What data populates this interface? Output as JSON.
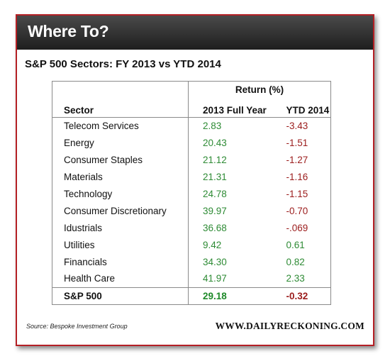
{
  "banner": {
    "title": "Where To?"
  },
  "subtitle": "S&P 500 Sectors: FY 2013 vs YTD 2014",
  "table": {
    "group_header": "Return (%)",
    "col_sector": "Sector",
    "col_fy": "2013 Full Year",
    "col_ytd": "YTD 2014",
    "rows": [
      {
        "sector": "Telecom Services",
        "fy": "2.83",
        "ytd": "-3.43"
      },
      {
        "sector": "Energy",
        "fy": "20.43",
        "ytd": "-1.51"
      },
      {
        "sector": "Consumer Staples",
        "fy": "21.12",
        "ytd": "-1.27"
      },
      {
        "sector": "Materials",
        "fy": "21.31",
        "ytd": "-1.16"
      },
      {
        "sector": "Technology",
        "fy": "24.78",
        "ytd": "-1.15"
      },
      {
        "sector": "Consumer Discretionary",
        "fy": "39.97",
        "ytd": "-0.70"
      },
      {
        "sector": "Idustrials",
        "fy": "36.68",
        "ytd": "-.069"
      },
      {
        "sector": "Utilities",
        "fy": "9.42",
        "ytd": "0.61"
      },
      {
        "sector": "Financials",
        "fy": "34.30",
        "ytd": "0.82"
      },
      {
        "sector": "Health Care",
        "fy": "41.97",
        "ytd": "2.33"
      }
    ],
    "total": {
      "sector": "S&P 500",
      "fy": "29.18",
      "ytd": "-0.32"
    }
  },
  "source": "Source:  Bespoke Investment Group",
  "brand": "WWW.DAILYRECKONING.COM",
  "colors": {
    "positive": "#2e8b35",
    "negative": "#9b1c1c",
    "border": "#b42025",
    "banner": "#2a2a2a"
  },
  "chart_data": {
    "type": "table",
    "title": "S&P 500 Sectors: FY 2013 vs YTD 2014",
    "columns": [
      "Sector",
      "2013 Full Year",
      "YTD 2014"
    ],
    "rows": [
      [
        "Telecom Services",
        2.83,
        -3.43
      ],
      [
        "Energy",
        20.43,
        -1.51
      ],
      [
        "Consumer Staples",
        21.12,
        -1.27
      ],
      [
        "Materials",
        21.31,
        -1.16
      ],
      [
        "Technology",
        24.78,
        -1.15
      ],
      [
        "Consumer Discretionary",
        39.97,
        -0.7
      ],
      [
        "Idustrials",
        36.68,
        -0.069
      ],
      [
        "Utilities",
        9.42,
        0.61
      ],
      [
        "Financials",
        34.3,
        0.82
      ],
      [
        "Health Care",
        41.97,
        2.33
      ],
      [
        "S&P 500",
        29.18,
        -0.32
      ]
    ]
  }
}
